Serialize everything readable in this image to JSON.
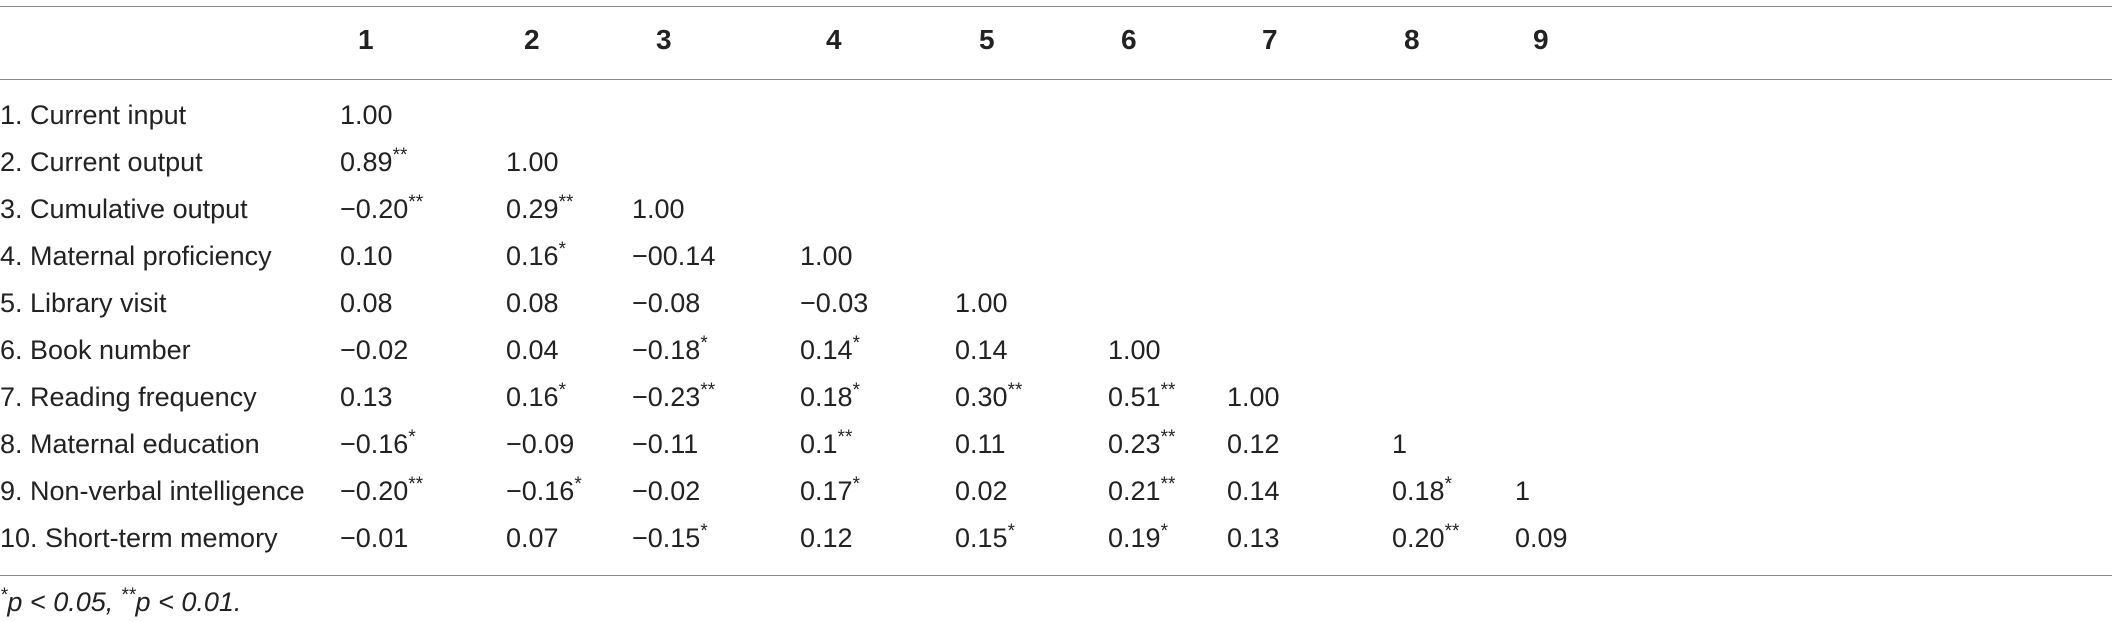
{
  "table": {
    "columns": [
      "1",
      "2",
      "3",
      "4",
      "5",
      "6",
      "7",
      "8",
      "9"
    ],
    "rows": [
      {
        "label": "1. Current input",
        "cells": [
          "1.00",
          "",
          "",
          "",
          "",
          "",
          "",
          "",
          ""
        ]
      },
      {
        "label": "2. Current output",
        "cells": [
          "0.89**",
          "1.00",
          "",
          "",
          "",
          "",
          "",
          "",
          ""
        ]
      },
      {
        "label": "3. Cumulative output",
        "cells": [
          "−0.20**",
          "0.29**",
          "1.00",
          "",
          "",
          "",
          "",
          "",
          ""
        ]
      },
      {
        "label": "4. Maternal proficiency",
        "cells": [
          "0.10",
          "0.16*",
          "−00.14",
          "1.00",
          "",
          "",
          "",
          "",
          ""
        ]
      },
      {
        "label": "5. Library visit",
        "cells": [
          "0.08",
          "0.08",
          "−0.08",
          "−0.03",
          "1.00",
          "",
          "",
          "",
          ""
        ]
      },
      {
        "label": "6. Book number",
        "cells": [
          "−0.02",
          "0.04",
          "−0.18*",
          "0.14*",
          "0.14",
          "1.00",
          "",
          "",
          ""
        ]
      },
      {
        "label": "7. Reading frequency",
        "cells": [
          "0.13",
          "0.16*",
          "−0.23**",
          "0.18*",
          "0.30**",
          "0.51**",
          "1.00",
          "",
          ""
        ]
      },
      {
        "label": "8. Maternal education",
        "cells": [
          "−0.16*",
          "−0.09",
          "−0.11",
          "0.1**",
          "0.11",
          "0.23**",
          "0.12",
          "1",
          ""
        ]
      },
      {
        "label": "9. Non-verbal intelligence",
        "cells": [
          "−0.20**",
          "−0.16*",
          "−0.02",
          "0.17*",
          "0.02",
          "0.21**",
          "0.14",
          "0.18*",
          "1"
        ]
      },
      {
        "label": "10. Short-term memory",
        "cells": [
          "−0.01",
          "0.07",
          "−0.15*",
          "0.12",
          "0.15*",
          "0.19*",
          "0.13",
          "0.20**",
          "0.09"
        ]
      }
    ],
    "footnote": "*p < 0.05, **p < 0.01."
  }
}
